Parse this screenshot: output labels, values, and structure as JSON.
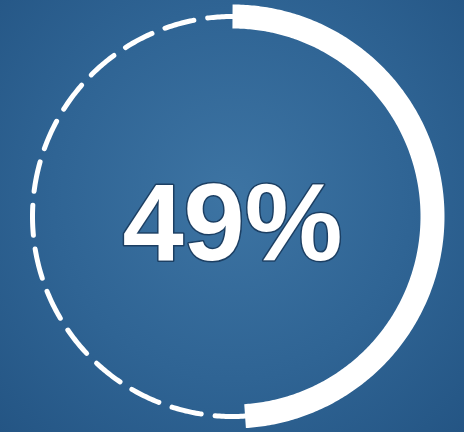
{
  "chart_data": {
    "type": "donut",
    "values": [
      49
    ],
    "value_labels": [
      "49%"
    ],
    "data_labels": true,
    "color": "#ffffff",
    "ylim": [
      0,
      100
    ],
    "tick_labels": false
  }
}
